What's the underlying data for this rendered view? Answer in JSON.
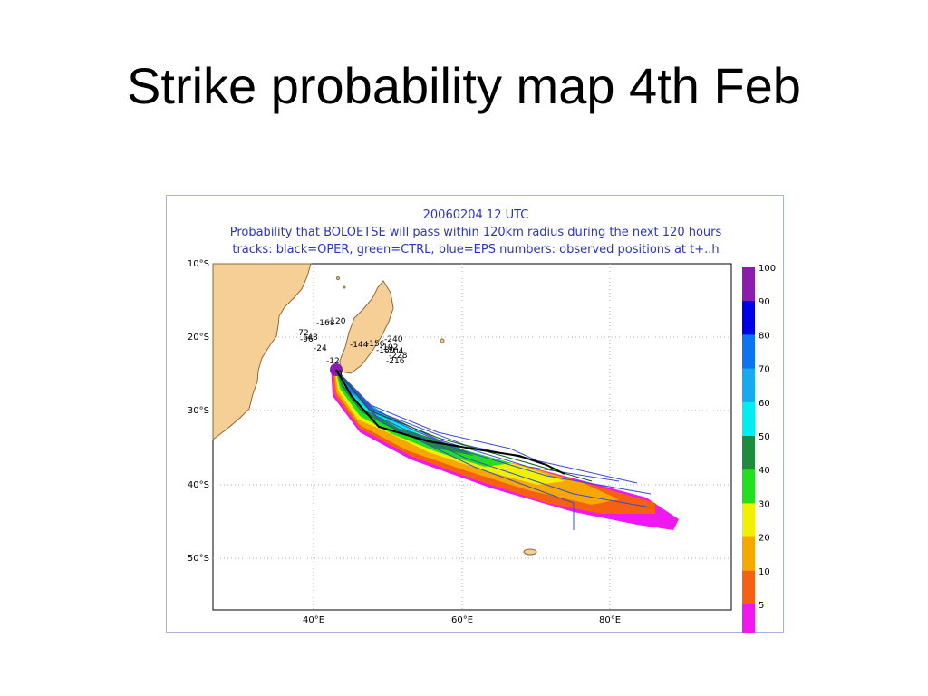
{
  "slide": {
    "title": "Strike probability map 4th Feb"
  },
  "figure": {
    "line1": "20060204 12 UTC",
    "line2": "Probability that BOLOETSE will pass within 120km radius during the next 120 hours",
    "line3": "tracks: black=OPER, green=CTRL, blue=EPS numbers: observed positions at t+..h"
  },
  "axes": {
    "lat_ticks": [
      "10°S",
      "20°S",
      "30°S",
      "40°S",
      "50°S"
    ],
    "lon_ticks": [
      "40°E",
      "60°E",
      "80°E"
    ]
  },
  "colorbar": {
    "levels": [
      "100",
      "90",
      "80",
      "70",
      "60",
      "50",
      "40",
      "30",
      "20",
      "10",
      "5"
    ],
    "colors": [
      "#8a1cb0",
      "#0000e6",
      "#0b74f0",
      "#16aaf0",
      "#00eef0",
      "#1e8c3c",
      "#22e01e",
      "#f0f000",
      "#f6a800",
      "#f66010",
      "#f018f0"
    ]
  },
  "observed_labels": [
    "-168",
    "-120",
    "-72",
    "-96",
    "-48",
    "-24",
    "-144",
    "-156",
    "-192",
    "-180",
    "-240",
    "-204",
    "-228",
    "-216",
    "-12",
    "0"
  ]
}
